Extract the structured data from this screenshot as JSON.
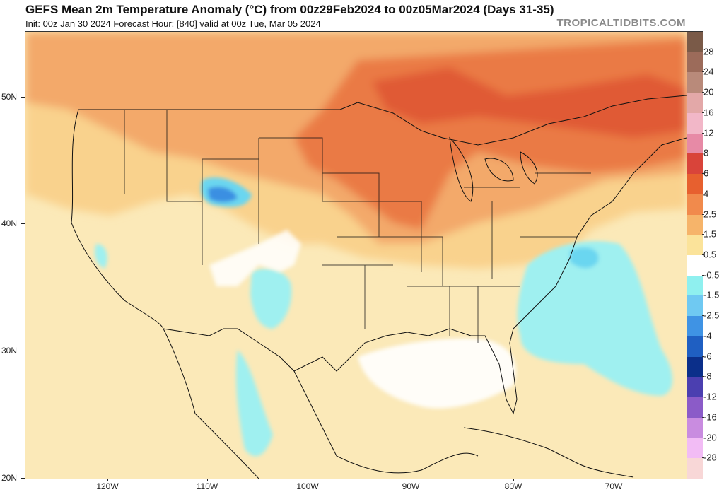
{
  "header": {
    "title": "GEFS Mean 2m Temperature Anomaly (°C) from 00z29Feb2024 to 00z05Mar2024 (Days 31-35)",
    "subtitle": "Init: 00z Jan 30 2024   Forecast Hour: [840]   valid at 00z Tue, Mar 05 2024",
    "brand": "TROPICALTIDBITS.COM"
  },
  "axes": {
    "lat_labels": [
      "50N",
      "40N",
      "30N",
      "20N"
    ],
    "lon_labels": [
      "120W",
      "110W",
      "100W",
      "90W",
      "80W",
      "70W"
    ]
  },
  "colorbar": {
    "labels": [
      "28",
      "24",
      "20",
      "16",
      "12",
      "8",
      "6",
      "4",
      "2.5",
      "1.5",
      "0.5",
      "-0.5",
      "-1.5",
      "-2.5",
      "-4",
      "-6",
      "-8",
      "-12",
      "-16",
      "-20",
      "-28"
    ],
    "colors": [
      "#7a5a48",
      "#9c6b5a",
      "#b98a7a",
      "#e3a8a8",
      "#f2b7c8",
      "#e78aa6",
      "#d9443a",
      "#e7602f",
      "#f18a4c",
      "#f6b46a",
      "#fbe39a",
      "#ffffff",
      "#8ff0ef",
      "#6fc9f2",
      "#3f93e4",
      "#1f5fc2",
      "#0b2f8a",
      "#4b3fb0",
      "#8b5bc8",
      "#c98ce0",
      "#f2bcf5",
      "#f8d7d7"
    ]
  },
  "map": {
    "colors": {
      "base": "#fbe9b8",
      "warm_light": "#f9d28d",
      "warm_mid": "#f3a96a",
      "warm_strong": "#ea7a45",
      "warm_hot": "#e05a34",
      "cool_light": "#9ff0f0",
      "cool_mid": "#6ad6f0",
      "cool_strong": "#3a8fe2",
      "neutral": "#ffffff",
      "coast": "#111111"
    }
  }
}
